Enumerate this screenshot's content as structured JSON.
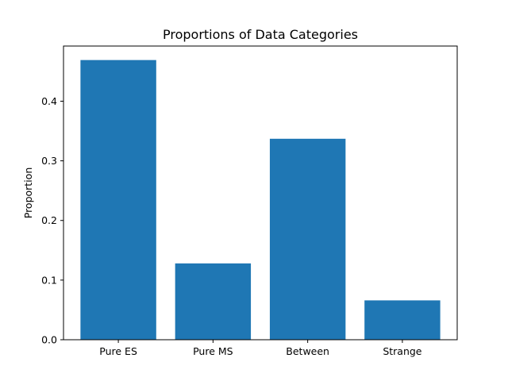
{
  "chart_data": {
    "type": "bar",
    "title": "Proportions of Data Categories",
    "xlabel": "",
    "ylabel": "Proportion",
    "categories": [
      "Pure ES",
      "Pure MS",
      "Between",
      "Strange"
    ],
    "values": [
      0.469,
      0.128,
      0.337,
      0.066
    ],
    "ylim": [
      0,
      0.4925
    ],
    "yticks": [
      0.0,
      0.1,
      0.2,
      0.3,
      0.4
    ],
    "ytick_labels": [
      "0.0",
      "0.1",
      "0.2",
      "0.3",
      "0.4"
    ],
    "grid": false,
    "legend": "none",
    "bar_color": "#1f77b4"
  }
}
